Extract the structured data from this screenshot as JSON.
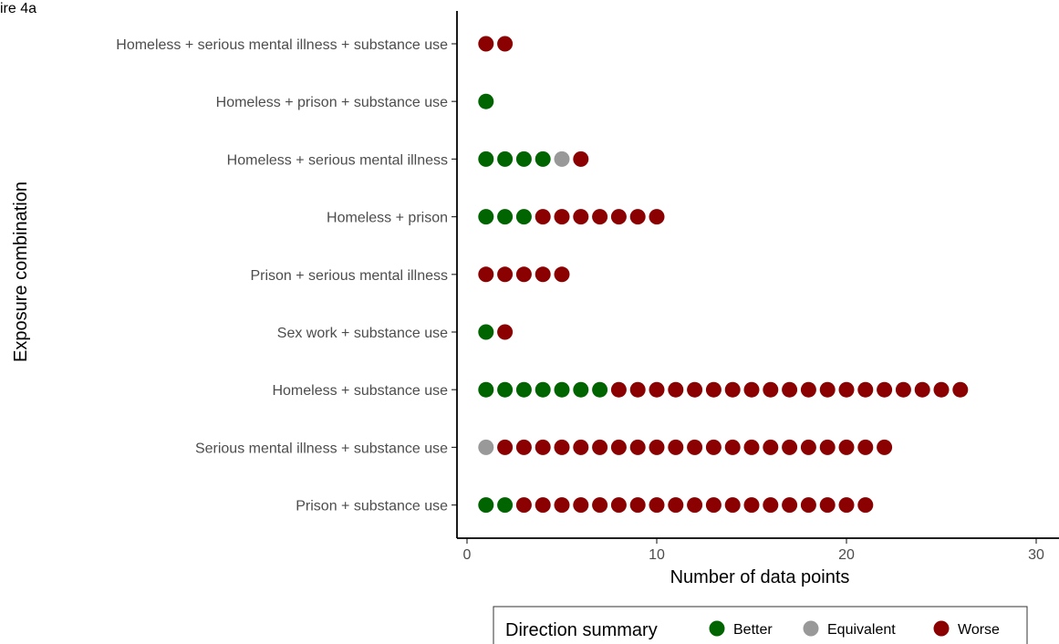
{
  "figure_label": "ire 4a",
  "chart_data": {
    "type": "scatter",
    "subtype": "dot-count",
    "xlabel": "Number of data points",
    "ylabel": "Exposure combination",
    "xlim": [
      0,
      30
    ],
    "x_ticks": [
      0,
      10,
      20,
      30
    ],
    "grid": false,
    "categories": [
      "Homeless + serious mental illness + substance use",
      "Homeless + prison + substance use ",
      "Homeless + serious mental illness",
      "Homeless + prison",
      "Prison + serious mental illness",
      "Sex work + substance use",
      "Homeless + substance use",
      "Serious mental illness + substance use",
      "Prison + substance use"
    ],
    "series": [
      {
        "name": "Better",
        "color": "#006400",
        "counts": [
          0,
          1,
          4,
          3,
          0,
          1,
          7,
          0,
          2
        ]
      },
      {
        "name": "Equivalent",
        "color": "#999999",
        "counts": [
          0,
          0,
          1,
          0,
          0,
          0,
          0,
          1,
          0
        ]
      },
      {
        "name": "Worse",
        "color": "#8b0000",
        "counts": [
          2,
          0,
          1,
          7,
          5,
          1,
          19,
          21,
          19
        ]
      }
    ],
    "legend": {
      "title": "Direction summary",
      "position": "bottom",
      "entries": [
        "Better",
        "Equivalent",
        "Worse"
      ]
    }
  }
}
